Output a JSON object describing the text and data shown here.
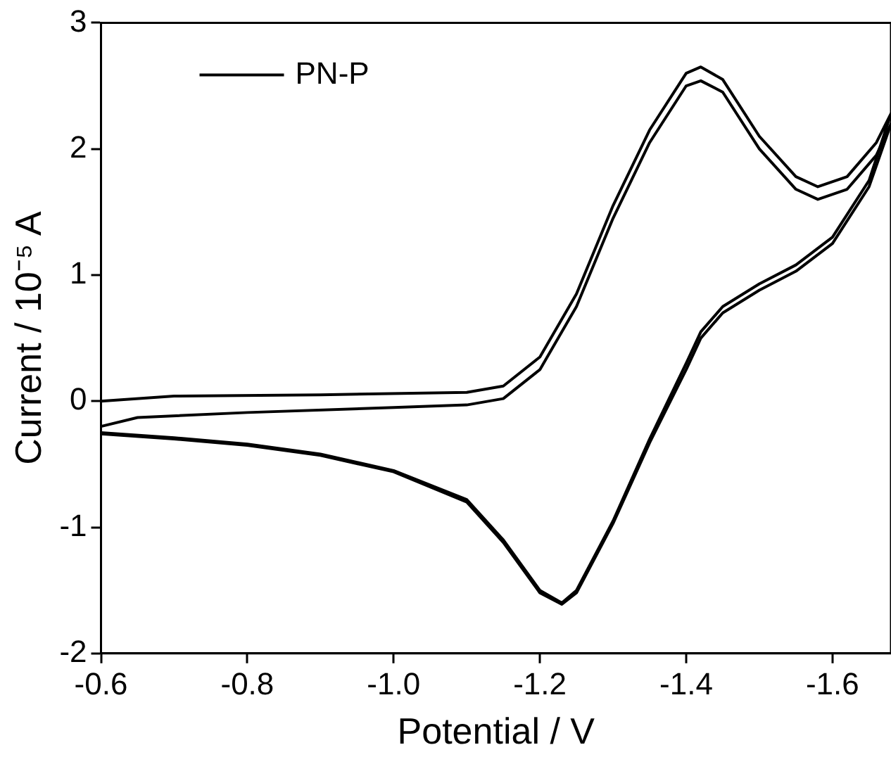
{
  "chart_data": {
    "type": "line",
    "xlabel": "Potential / V",
    "ylabel": "Current / 10⁻⁵ A",
    "xlim": [
      -0.6,
      -1.68
    ],
    "xticks": [
      -0.6,
      -0.8,
      {
        "value": -1,
        "label": "-1.0"
      },
      -1.2,
      -1.4,
      -1.6
    ],
    "ylim": [
      -2,
      3
    ],
    "yticks": [
      -2,
      -1,
      0,
      1,
      2,
      3
    ],
    "grid": false,
    "legend": "top left",
    "marker": "none",
    "line_style": "solid",
    "series": [
      {
        "name": "PN-P",
        "color": "#000000",
        "x": [
          -0.6,
          -0.7,
          -0.9,
          -1.1,
          -1.15,
          -1.2,
          -1.25,
          -1.3,
          -1.35,
          -1.4,
          -1.42,
          -1.45,
          -1.5,
          -1.55,
          -1.58,
          -1.62,
          -1.66,
          -1.68,
          -1.65,
          -1.6,
          -1.55,
          -1.5,
          -1.45,
          -1.42,
          -1.4,
          -1.35,
          -1.3,
          -1.25,
          -1.23,
          -1.2,
          -1.15,
          -1.1,
          -1.0,
          -0.9,
          -0.8,
          -0.7,
          -0.6
        ],
        "values": [
          0.0,
          0.04,
          0.05,
          0.07,
          0.12,
          0.35,
          0.85,
          1.55,
          2.15,
          2.6,
          2.65,
          2.55,
          2.1,
          1.78,
          1.7,
          1.78,
          2.05,
          2.28,
          1.75,
          1.3,
          1.08,
          0.93,
          0.75,
          0.55,
          0.3,
          -0.3,
          -0.95,
          -1.5,
          -1.6,
          -1.5,
          -1.1,
          -0.78,
          -0.55,
          -0.42,
          -0.34,
          -0.29,
          -0.25
        ]
      },
      {
        "color": "#000000",
        "x": [
          -0.6,
          -0.65,
          -0.8,
          -1.0,
          -1.1,
          -1.15,
          -1.2,
          -1.25,
          -1.3,
          -1.35,
          -1.4,
          -1.42,
          -1.45,
          -1.5,
          -1.55,
          -1.58,
          -1.62,
          -1.66,
          -1.68,
          -1.65,
          -1.6,
          -1.55,
          -1.5,
          -1.45,
          -1.42,
          -1.4,
          -1.35,
          -1.3,
          -1.25,
          -1.23,
          -1.2,
          -1.15,
          -1.1,
          -1.0,
          -0.9,
          -0.8,
          -0.7,
          -0.6
        ],
        "values": [
          -0.2,
          -0.13,
          -0.09,
          -0.05,
          -0.03,
          0.02,
          0.25,
          0.75,
          1.45,
          2.05,
          2.5,
          2.54,
          2.45,
          2.0,
          1.68,
          1.6,
          1.68,
          1.95,
          2.2,
          1.7,
          1.25,
          1.03,
          0.88,
          0.7,
          0.5,
          0.25,
          -0.33,
          -0.97,
          -1.52,
          -1.61,
          -1.52,
          -1.12,
          -0.8,
          -0.56,
          -0.43,
          -0.35,
          -0.3,
          -0.26
        ]
      }
    ]
  }
}
